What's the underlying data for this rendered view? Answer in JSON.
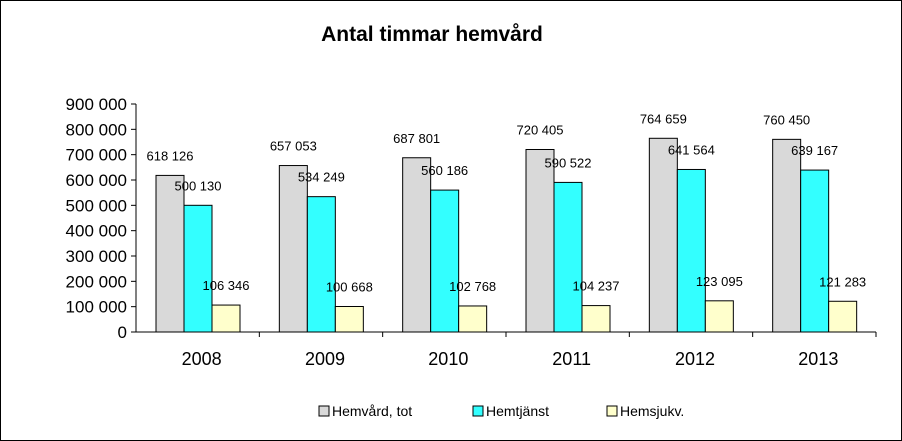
{
  "chart_data": {
    "type": "bar",
    "title": "Antal timmar hemvård",
    "xlabel": "",
    "ylabel": "",
    "categories": [
      "2008",
      "2009",
      "2010",
      "2011",
      "2012",
      "2013"
    ],
    "series": [
      {
        "name": "Hemvård, tot",
        "color": "#d9d9d9",
        "values": [
          618126,
          657053,
          687801,
          720405,
          764659,
          760450
        ],
        "labels": [
          "618 126",
          "657 053",
          "687 801",
          "720 405",
          "764 659",
          "760 450"
        ]
      },
      {
        "name": "Hemtjänst",
        "color": "#33ffff",
        "values": [
          500130,
          534249,
          560186,
          590522,
          641564,
          639167
        ],
        "labels": [
          "500 130",
          "534 249",
          "560 186",
          "590 522",
          "641 564",
          "639 167"
        ]
      },
      {
        "name": "Hemsjukv.",
        "color": "#ffffcc",
        "values": [
          106346,
          100668,
          102768,
          104237,
          123095,
          121283
        ],
        "labels": [
          "106 346",
          "100 668",
          "102 768",
          "104 237",
          "123 095",
          "121 283"
        ]
      }
    ],
    "ylim": [
      0,
      900000
    ],
    "yticks": [
      "0",
      "100 000",
      "200 000",
      "300 000",
      "400 000",
      "500 000",
      "600 000",
      "700 000",
      "800 000",
      "900 000"
    ],
    "grid": false,
    "legend": "bottom"
  }
}
